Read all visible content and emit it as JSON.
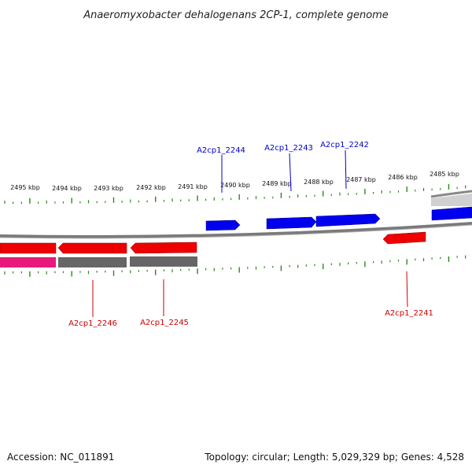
{
  "title": "Anaeromyxobacter dehalogenans 2CP-1, complete genome",
  "footer": {
    "accession": "Accession: NC_011891",
    "summary": "Topology: circular; Length: 5,029,329 bp; Genes: 4,528"
  },
  "colors": {
    "forward_gene": "#0000ee",
    "reverse_gene": "#ee0000",
    "pink_gene": "#e8187c",
    "gray_gene": "#666666",
    "tick": "#2a8a1a",
    "backbone": "#777777",
    "forward_label": "#0000cc",
    "reverse_label": "#cc0000"
  },
  "scale": {
    "unit": "kbp",
    "ticks": [
      {
        "label": "2495 kbp",
        "kbp": 2495
      },
      {
        "label": "2494 kbp",
        "kbp": 2494
      },
      {
        "label": "2493 kbp",
        "kbp": 2493
      },
      {
        "label": "2492 kbp",
        "kbp": 2492
      },
      {
        "label": "2491 kbp",
        "kbp": 2491
      },
      {
        "label": "2490 kbp",
        "kbp": 2490
      },
      {
        "label": "2489 kbp",
        "kbp": 2489
      },
      {
        "label": "2488 kbp",
        "kbp": 2488
      },
      {
        "label": "2487 kbp",
        "kbp": 2487
      },
      {
        "label": "2486 kbp",
        "kbp": 2486
      },
      {
        "label": "2485 kbp",
        "kbp": 2485
      }
    ]
  },
  "genes": [
    {
      "name": "A2cp1_2244",
      "strand": "forward",
      "labeled": true
    },
    {
      "name": "A2cp1_2243",
      "strand": "forward",
      "labeled": true
    },
    {
      "name": "A2cp1_2242",
      "strand": "forward",
      "labeled": true
    },
    {
      "name": "A2cp1_2241",
      "strand": "reverse",
      "labeled": true
    },
    {
      "name": "A2cp1_2246",
      "strand": "reverse",
      "labeled": true
    },
    {
      "name": "A2cp1_2245",
      "strand": "reverse",
      "labeled": true
    }
  ]
}
